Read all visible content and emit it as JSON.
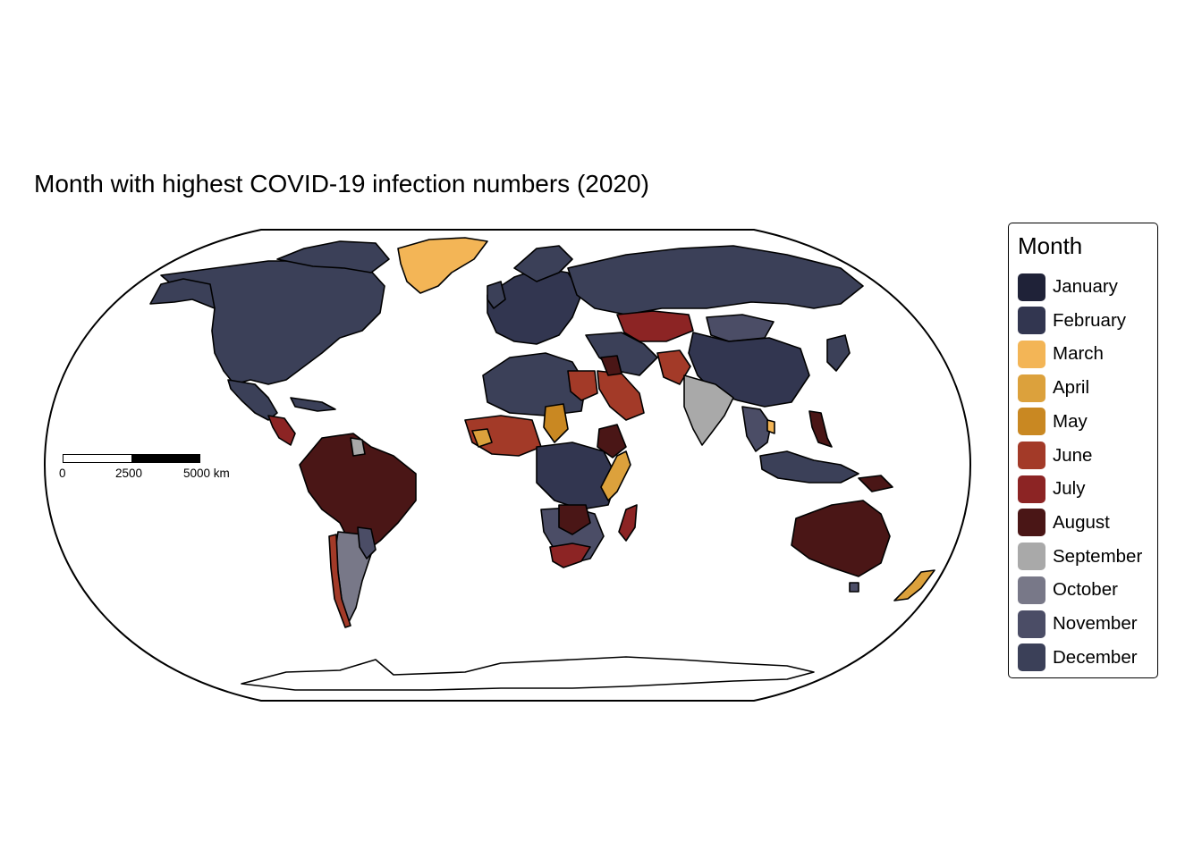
{
  "title": "Month with highest COVID-19 infection numbers (2020)",
  "legend": {
    "title": "Month",
    "items": [
      {
        "label": "January",
        "color": "#1f2238"
      },
      {
        "label": "February",
        "color": "#323650"
      },
      {
        "label": "March",
        "color": "#f3b556"
      },
      {
        "label": "April",
        "color": "#dca13c"
      },
      {
        "label": "May",
        "color": "#c98822"
      },
      {
        "label": "June",
        "color": "#a33a28"
      },
      {
        "label": "July",
        "color": "#8c2424"
      },
      {
        "label": "August",
        "color": "#4a1616"
      },
      {
        "label": "September",
        "color": "#a9a9a9"
      },
      {
        "label": "October",
        "color": "#787888"
      },
      {
        "label": "November",
        "color": "#4b4d66"
      },
      {
        "label": "December",
        "color": "#3b4058"
      }
    ]
  },
  "scalebar": {
    "labels": [
      "0",
      "2500",
      "5000 km"
    ]
  },
  "ocean_color": "#ffffff",
  "border_color": "#000000"
}
